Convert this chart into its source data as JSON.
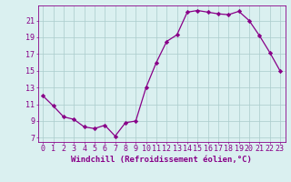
{
  "x": [
    0,
    1,
    2,
    3,
    4,
    5,
    6,
    7,
    8,
    9,
    10,
    11,
    12,
    13,
    14,
    15,
    16,
    17,
    18,
    19,
    20,
    21,
    22,
    23
  ],
  "y": [
    12.0,
    10.8,
    9.5,
    9.2,
    8.3,
    8.1,
    8.5,
    7.2,
    8.8,
    9.0,
    13.0,
    16.0,
    18.5,
    19.3,
    22.0,
    22.2,
    22.0,
    21.8,
    21.7,
    22.1,
    21.0,
    19.2,
    17.2,
    15.0
  ],
  "line_color": "#880088",
  "marker": "D",
  "marker_size": 2.2,
  "bg_color": "#daf0f0",
  "grid_color": "#aacccc",
  "xlabel": "Windchill (Refroidissement éolien,°C)",
  "xlim": [
    -0.5,
    23.5
  ],
  "ylim": [
    6.5,
    22.8
  ],
  "yticks": [
    7,
    9,
    11,
    13,
    15,
    17,
    19,
    21
  ],
  "xticks": [
    0,
    1,
    2,
    3,
    4,
    5,
    6,
    7,
    8,
    9,
    10,
    11,
    12,
    13,
    14,
    15,
    16,
    17,
    18,
    19,
    20,
    21,
    22,
    23
  ],
  "xlabel_fontsize": 6.5,
  "tick_fontsize": 6.0
}
